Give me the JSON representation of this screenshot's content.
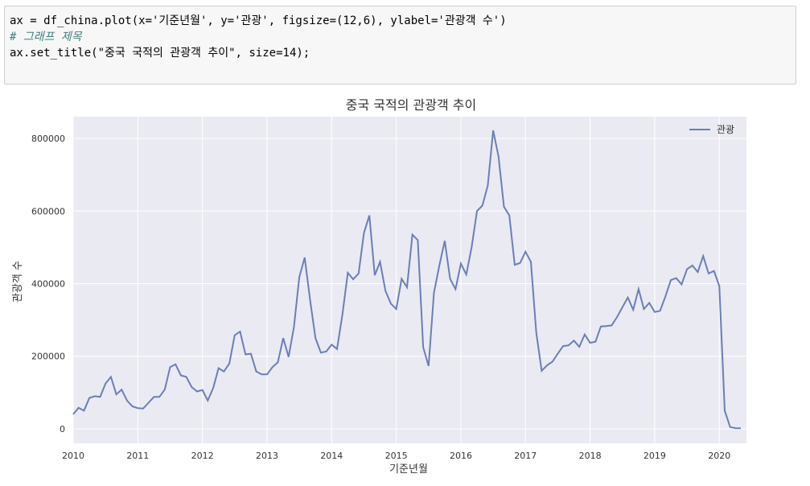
{
  "code_cell": {
    "lines": [
      "ax = df_china.plot(x='기준년월', y='관광', figsize=(12,6), ylabel='관광객 수')",
      "# 그래프 제목",
      "ax.set_title(\"중국 국적의 관광객 추이\", size=14);"
    ]
  },
  "colors": {
    "line": "#6a7fb5",
    "plot_bg": "#eaeaf2",
    "grid": "#ffffff",
    "text": "#333333"
  },
  "chart_data": {
    "type": "line",
    "title": "중국 국적의 관광객 추이",
    "xlabel": "기준년월",
    "ylabel": "관광객 수",
    "legend": "top-right",
    "grid": true,
    "xlim": [
      2010.0,
      2020.42
    ],
    "ylim": [
      -40000,
      860000
    ],
    "x_ticks": [
      2010,
      2011,
      2012,
      2013,
      2014,
      2015,
      2016,
      2017,
      2018,
      2019,
      2020
    ],
    "x_tick_labels": [
      "2010",
      "2011",
      "2012",
      "2013",
      "2014",
      "2015",
      "2016",
      "2017",
      "2018",
      "2019",
      "2020"
    ],
    "y_ticks": [
      0,
      200000,
      400000,
      600000,
      800000
    ],
    "y_tick_labels": [
      "0",
      "200000",
      "400000",
      "600000",
      "800000"
    ],
    "series": [
      {
        "name": "관광",
        "start": [
          2010,
          1
        ],
        "frequency": "monthly",
        "values": [
          40000,
          58000,
          50000,
          85000,
          90000,
          88000,
          125000,
          143000,
          95000,
          108000,
          78000,
          62000,
          57000,
          56000,
          72000,
          88000,
          88000,
          108000,
          170000,
          178000,
          147000,
          143000,
          115000,
          103000,
          107000,
          78000,
          112000,
          167000,
          158000,
          180000,
          258000,
          268000,
          205000,
          207000,
          158000,
          150000,
          150000,
          170000,
          183000,
          250000,
          198000,
          280000,
          418000,
          472000,
          355000,
          250000,
          210000,
          213000,
          232000,
          220000,
          315000,
          430000,
          412000,
          428000,
          540000,
          588000,
          423000,
          460000,
          380000,
          345000,
          330000,
          413000,
          390000,
          535000,
          520000,
          225000,
          173000,
          375000,
          450000,
          518000,
          413000,
          385000,
          455000,
          425000,
          500000,
          600000,
          615000,
          670000,
          822000,
          750000,
          612000,
          588000,
          452000,
          457000,
          488000,
          460000,
          265000,
          160000,
          175000,
          185000,
          207000,
          228000,
          230000,
          243000,
          226000,
          260000,
          237000,
          240000,
          282000,
          283000,
          285000,
          308000,
          335000,
          362000,
          328000,
          385000,
          330000,
          347000,
          322000,
          325000,
          365000,
          410000,
          415000,
          398000,
          440000,
          450000,
          432000,
          476000,
          428000,
          435000,
          393000,
          50000,
          5000,
          2000,
          1500
        ]
      }
    ]
  }
}
